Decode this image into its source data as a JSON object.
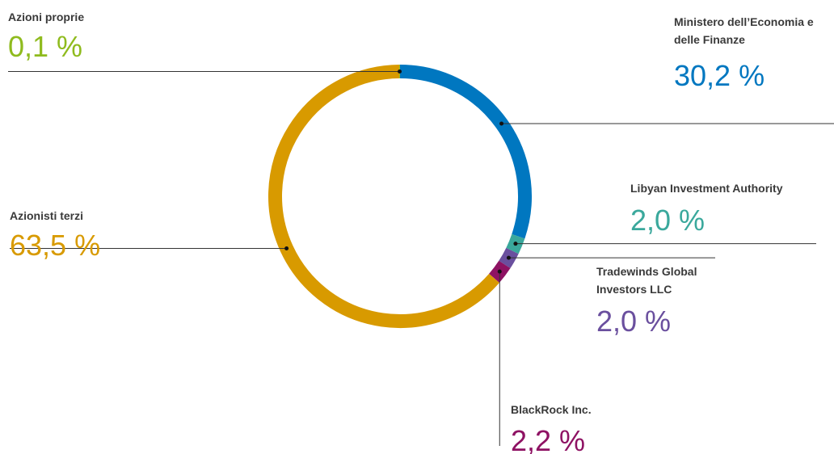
{
  "chart_data": {
    "type": "donut",
    "categories": [
      "Ministero dell’Economia e delle Finanze",
      "Libyan Investment Authority",
      "Tradewinds Global Investors LLC",
      "BlackRock Inc.",
      "Azionisti terzi",
      "Azioni proprie"
    ],
    "values": [
      30.2,
      2.0,
      2.0,
      2.2,
      63.5,
      0.1
    ],
    "value_labels": [
      "30,2 %",
      "2,0 %",
      "2,0 %",
      "2,2 %",
      "63,5 %",
      "0,1 %"
    ],
    "colors": [
      "#0077c0",
      "#3aa89c",
      "#6a4f9e",
      "#8e1263",
      "#d89a00",
      "#8fbb1e"
    ]
  }
}
